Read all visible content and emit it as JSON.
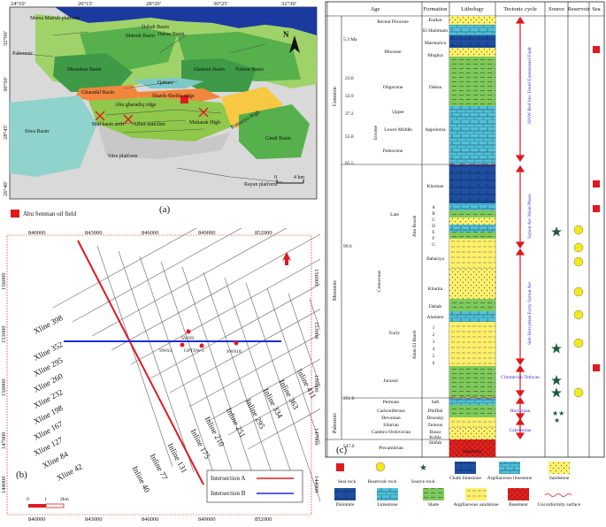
{
  "panel_a": {
    "label": "(a)",
    "top_ticks": [
      "24°10'",
      "26°15'",
      "28°20'",
      "30°25'",
      "32°30'"
    ],
    "left_ticks": [
      "32°00'",
      "30°50'",
      "28°45'",
      "26°40'"
    ],
    "north": "N",
    "scale": [
      "0",
      "4 km"
    ],
    "legend": "Abu Senman oil field",
    "basins": [
      "Mersa Matruh platform",
      "Matruh Basin",
      "Dabaa Basin",
      "Dahab Basin",
      "Shoushan Basin",
      "Alamein Basin",
      "Natrun Basin",
      "Qattara",
      "Gharadal Basin",
      "Abu gharadiq ridge",
      "Sharib-Sheiba ridge",
      "Abu gharadiq Basin",
      "Sitra platform",
      "Siwa Basin",
      "Kattaniya High",
      "Gindi Basin",
      "Rayan platform",
      "Paleozoic",
      "Mid basin arch",
      "Azhar anticline",
      "Mubarak High"
    ]
  },
  "panel_b": {
    "label": "(b)",
    "top_ticks": [
      "840000",
      "843000",
      "846000",
      "849000",
      "852000"
    ],
    "bottom_ticks": [
      "840000",
      "843000",
      "846000",
      "849000",
      "852000"
    ],
    "left_ticks": [
      "156000",
      "153000",
      "150000",
      "147000",
      "144000"
    ],
    "right_ticks": [
      "156000",
      "153000",
      "150000",
      "147000",
      "144000"
    ],
    "xlines": [
      "Xline 398",
      "Xline 352",
      "Xline 295",
      "Xline 260",
      "Xline 232",
      "Xline 198",
      "Xline 167",
      "Xline 127",
      "Xline 84",
      "Xline 42"
    ],
    "inlines": [
      "Inline 40",
      "Inline 77",
      "Inline 131",
      "Inline 175",
      "Inline 210",
      "Inline 251",
      "Inline 295",
      "Inline 334",
      "Inline 363",
      "Inline 411"
    ],
    "wells": [
      "SWS9",
      "SWS3",
      "GPTSW-5",
      "SWS18"
    ],
    "scale": [
      "0",
      "1",
      "2km"
    ],
    "legend": [
      {
        "label": "Intersection A",
        "color": "#e0191f"
      },
      {
        "label": "Intersection B",
        "color": "#1d2fd6"
      }
    ]
  },
  "panel_c": {
    "label": "(c)",
    "headers": [
      "Age",
      "Formation",
      "Lithology",
      "Tectonic cycle",
      "Source",
      "Reservoir",
      "Sea"
    ],
    "era_ages": [
      "5.3 Ma",
      "23.0",
      "33.9",
      "37.2",
      "55.8",
      "65.5",
      "99.6",
      "251.0",
      "547.0"
    ],
    "eras": [
      "Cenozoic",
      "Mesozoic",
      "Paleozoic"
    ],
    "periods": [
      "Recent Pliocene",
      "Miocene",
      "Oligocene",
      "Eocene",
      "Paleocene",
      "Cretaceous",
      "Jurassic",
      "Permian",
      "Carboniferous",
      "Devonian",
      "Silurian",
      "Cambro-Ordovician",
      "Precambrian"
    ],
    "subperiods": [
      "Upper",
      "Lower Middle",
      "Late",
      "Early"
    ],
    "formations": [
      "Karkar",
      "El Hammam",
      "Marmarica",
      "Moghra",
      "Dabaa",
      "Appolonia",
      "Khoman",
      "Abu Roash",
      "Bahariya",
      "Kharita",
      "Dahab",
      "Alamein",
      "Alam El Bueib",
      "Safi",
      "Dhiffah",
      "Desouky",
      "Zeitoun",
      "Basur",
      "Kohla",
      "Shifah",
      "Basement"
    ],
    "abu_roash_members": [
      "A",
      "B",
      "C",
      "D",
      "E",
      "F",
      "G"
    ],
    "aeb_members": [
      "1",
      "2",
      "3",
      "4",
      "5",
      "6"
    ],
    "tectonic": [
      "NNW Red Sea Trend Extensional Fault",
      "Syrian Arc Main Phase",
      "Sub-Hercynian Early Syrian Arc",
      "Cimmerian Tethyan",
      "Hercynian",
      "Caledonian"
    ],
    "legend": [
      "Seal rock",
      "Reservoir rock",
      "Source rock",
      "Chalk limestone",
      "Argillaceous limestone",
      "Sandstone",
      "Dolomite",
      "Limestone",
      "Shale",
      "Argillaceous sandstone",
      "Basement",
      "Unconformity surface"
    ],
    "colors": {
      "seal": "#e0191f",
      "reservoir": "#f5e81b",
      "source": "#1e5a3c",
      "tectonic": "#3a2fd0"
    }
  }
}
